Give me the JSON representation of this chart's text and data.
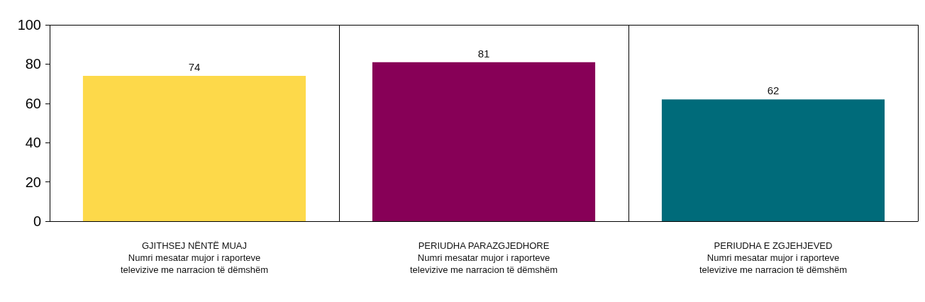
{
  "chart_data": {
    "type": "bar",
    "categories": [
      "GJITHSEJ NËNTË MUAJ\nNumri mesatar mujor i raporteve\ntelevizive me narracion të dëmshëm",
      "PERIUDHA PARAZGJEDHORE\nNumri mesatar mujor i raporteve\ntelevizive me narracion të dëmshëm",
      "PERIUDHA E ZGJEHJEVED\nNumri mesatar mujor i raporteve\ntelevizive me narracion të dëmshëm"
    ],
    "values": [
      74,
      81,
      62
    ],
    "colors": [
      "#fdd94a",
      "#870057",
      "#006b7a"
    ],
    "ylim": [
      0,
      100
    ],
    "yticks": [
      0,
      20,
      40,
      60,
      80,
      100
    ],
    "grid": "x",
    "data_labels": true
  }
}
